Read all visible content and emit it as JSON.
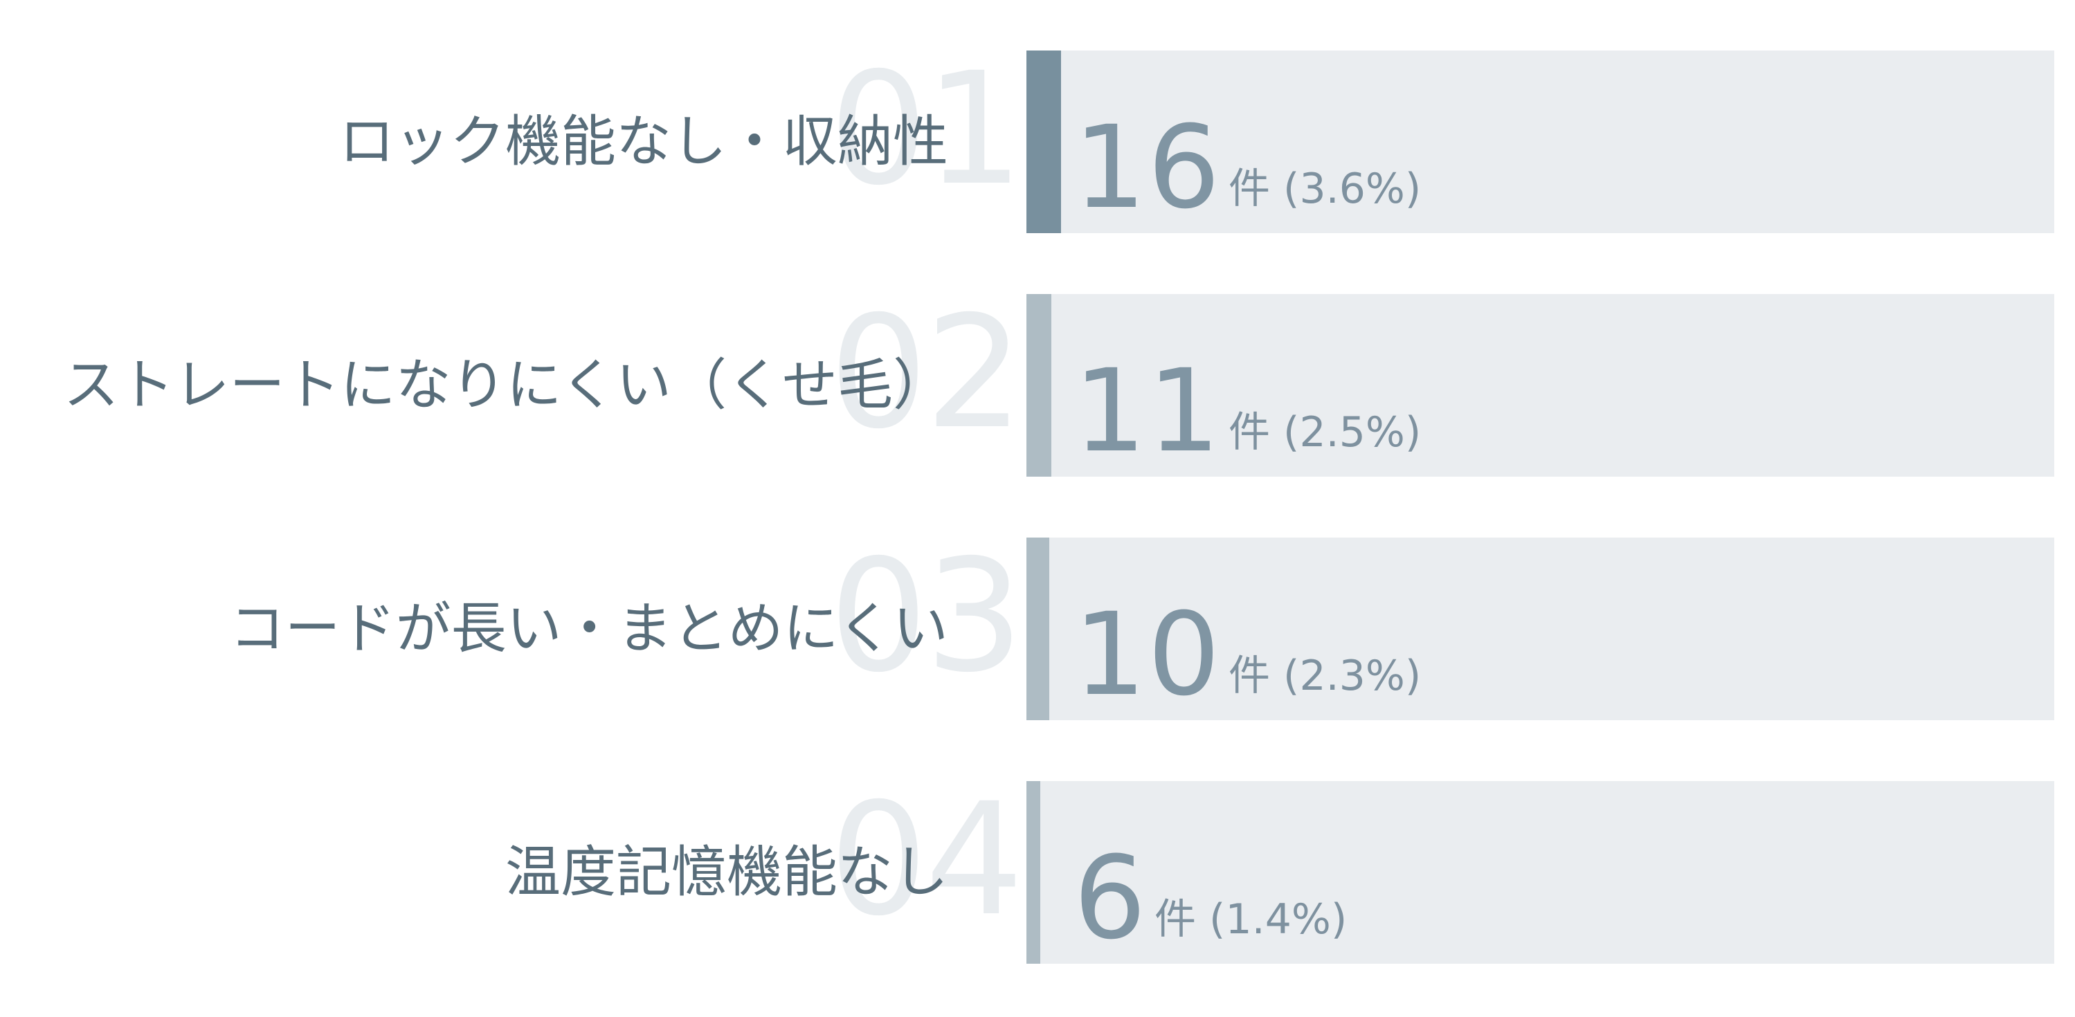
{
  "chart_data": {
    "type": "bar",
    "orientation": "horizontal",
    "title": "",
    "unit": "件",
    "categories": [
      "ロック機能なし・収納性",
      "ストレートになりにくい（くせ毛）",
      "コードが長い・まとめにくい",
      "温度記憶機能なし"
    ],
    "values": [
      16,
      11,
      10,
      6
    ],
    "percentages": [
      3.6,
      2.5,
      2.3,
      1.4
    ],
    "legend": "none",
    "grid": false,
    "rows": [
      {
        "rank": "01",
        "label": "ロック機能なし・収納性",
        "value": "16",
        "suffix": "件 (3.6%)",
        "accent_width": 50,
        "accent_color": "#78909e"
      },
      {
        "rank": "02",
        "label": "ストレートになりにくい（くせ毛）",
        "value": "11",
        "suffix": "件 (2.5%)",
        "accent_width": 36,
        "accent_color": "#aebcc4"
      },
      {
        "rank": "03",
        "label": "コードが長い・まとめにくい",
        "value": "10",
        "suffix": "件 (2.3%)",
        "accent_width": 33,
        "accent_color": "#aebcc4"
      },
      {
        "rank": "04",
        "label": "温度記憶機能なし",
        "value": "6",
        "suffix": "件 (1.4%)",
        "accent_width": 20,
        "accent_color": "#aebcc4"
      }
    ],
    "colors": {
      "track": "#eaedf0",
      "accent_primary": "#78909e",
      "accent_secondary": "#aebcc4",
      "value_text": "#8095a3",
      "label_text": "#586d7a",
      "rank_number": "#e8ecef",
      "background": "#ffffff"
    }
  }
}
